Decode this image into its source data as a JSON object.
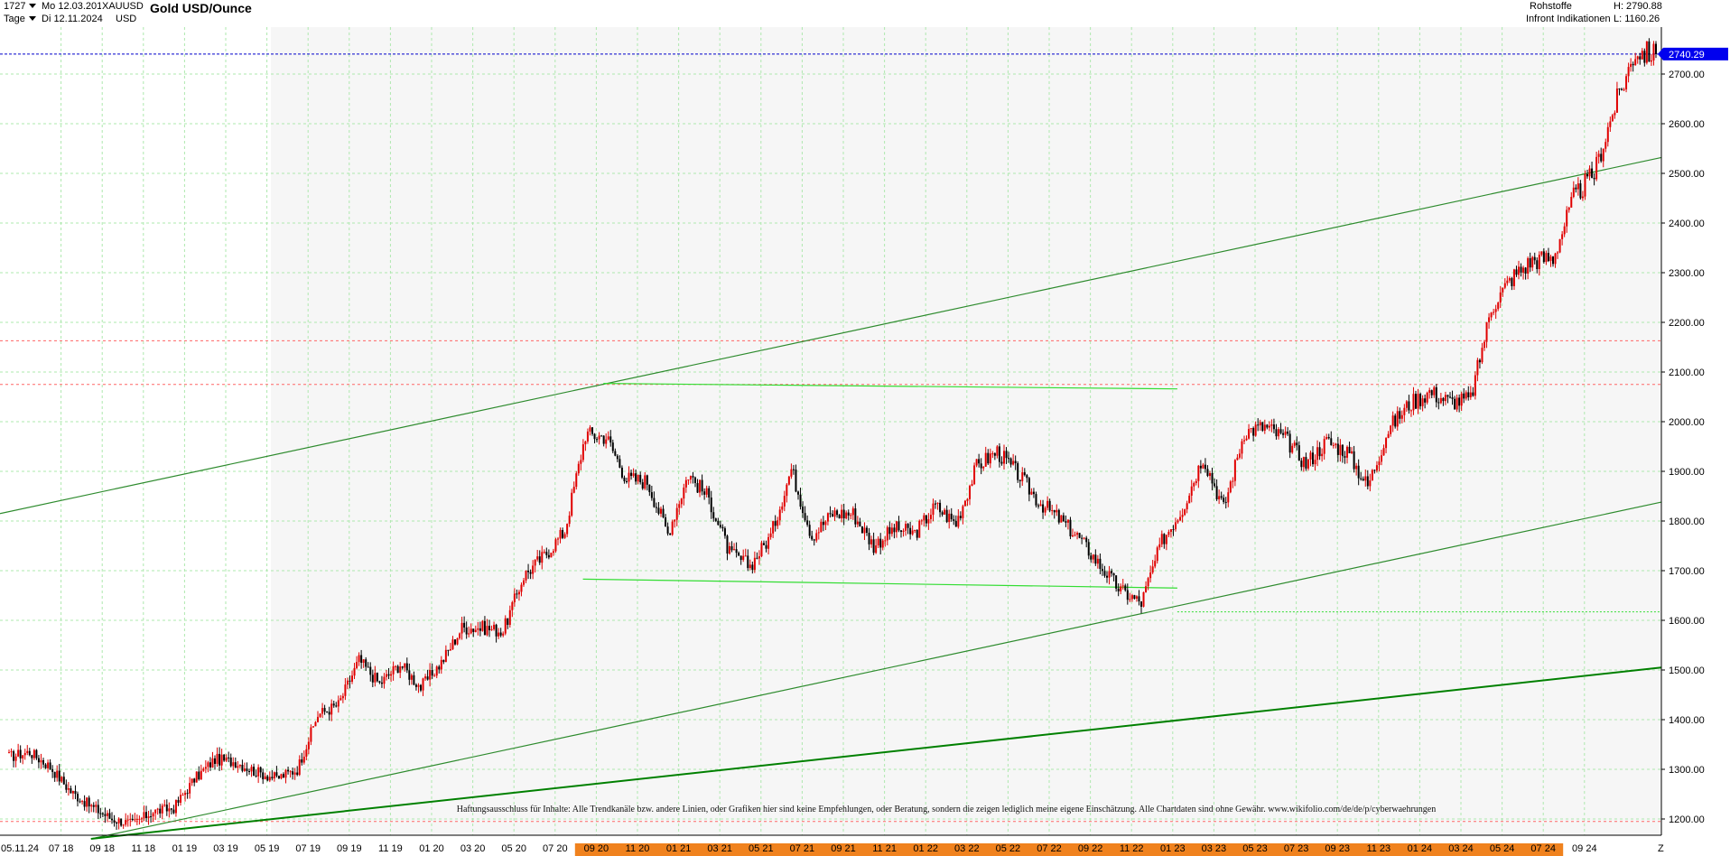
{
  "header": {
    "id": "1727",
    "period_label": "Tage",
    "start_date": "Mo 12.03.2018",
    "end_date": "Di 12.11.2024",
    "symbol": "XAUUSD",
    "currency": "USD",
    "title": "Gold USD/Ounce",
    "category": "Rohstoffe",
    "source": "Infront Indikationen",
    "high_label": "H: 2790.88",
    "low_label": "L: 1160.26",
    "axis_unit_marker": "Z"
  },
  "colors": {
    "candle_up": "#e00000",
    "candle_down": "#000000",
    "trend_green": "#2e8b2e",
    "channel_green": "#008000",
    "range_green": "#33dd33",
    "grid": "#aee8ae",
    "price_line": "#0000cc",
    "red_dashed": "#ff6666",
    "price_tag": "#0000ee",
    "orange_band": "#f0821e"
  },
  "chart_data": {
    "type": "candlestick",
    "title": "Gold USD/Ounce",
    "ylim": [
      1160,
      2800
    ],
    "y_ticks": [
      1200,
      1300,
      1400,
      1500,
      1600,
      1700,
      1800,
      1900,
      2000,
      2100,
      2200,
      2300,
      2400,
      2500,
      2600,
      2700
    ],
    "x_tick_labels": [
      "05.11.24",
      "07 18",
      "09 18",
      "11 18",
      "01 19",
      "03 19",
      "05 19",
      "07 19",
      "09 19",
      "11 19",
      "01 20",
      "03 20",
      "05 20",
      "07 20",
      "09 20",
      "11 20",
      "01 21",
      "03 21",
      "05 21",
      "07 21",
      "09 21",
      "11 21",
      "01 22",
      "03 22",
      "05 22",
      "07 22",
      "09 22",
      "11 22",
      "01 23",
      "03 23",
      "05 23",
      "07 23",
      "09 23",
      "11 23",
      "01 24",
      "03 24",
      "05 24",
      "07 24",
      "09 24"
    ],
    "last_price": 2740.29,
    "last_price_label": "2740.29",
    "high": 2790.88,
    "low": 1160.26,
    "series": [
      {
        "dates": [
          "2018-03",
          "2018-04",
          "2018-05",
          "2018-06",
          "2018-07",
          "2018-08",
          "2018-09",
          "2018-10",
          "2018-11",
          "2018-12",
          "2019-01",
          "2019-02",
          "2019-03",
          "2019-04",
          "2019-05",
          "2019-06",
          "2019-07",
          "2019-08",
          "2019-09",
          "2019-10",
          "2019-11",
          "2019-12",
          "2020-01",
          "2020-02",
          "2020-03",
          "2020-04",
          "2020-05",
          "2020-06",
          "2020-07",
          "2020-08",
          "2020-09",
          "2020-10",
          "2020-11",
          "2020-12",
          "2021-01",
          "2021-02",
          "2021-03",
          "2021-04",
          "2021-05",
          "2021-06",
          "2021-07",
          "2021-08",
          "2021-09",
          "2021-10",
          "2021-11",
          "2021-12",
          "2022-01",
          "2022-02",
          "2022-03",
          "2022-04",
          "2022-05",
          "2022-06",
          "2022-07",
          "2022-08",
          "2022-09",
          "2022-10",
          "2022-11",
          "2022-12",
          "2023-01",
          "2023-02",
          "2023-03",
          "2023-04",
          "2023-05",
          "2023-06",
          "2023-07",
          "2023-08",
          "2023-09",
          "2023-10",
          "2023-11",
          "2023-12",
          "2024-01",
          "2024-02",
          "2024-03",
          "2024-04",
          "2024-05",
          "2024-06",
          "2024-07",
          "2024-08",
          "2024-09",
          "2024-10",
          "2024-11"
        ],
        "close": [
          1325,
          1335,
          1305,
          1255,
          1225,
          1200,
          1190,
          1215,
          1222,
          1280,
          1320,
          1315,
          1295,
          1282,
          1300,
          1410,
          1430,
          1520,
          1472,
          1512,
          1465,
          1515,
          1585,
          1585,
          1578,
          1690,
          1730,
          1780,
          1975,
          1970,
          1885,
          1880,
          1775,
          1895,
          1845,
          1735,
          1710,
          1770,
          1905,
          1770,
          1815,
          1815,
          1750,
          1785,
          1775,
          1830,
          1795,
          1910,
          1940,
          1895,
          1840,
          1805,
          1765,
          1710,
          1660,
          1635,
          1760,
          1825,
          1930,
          1825,
          1980,
          1990,
          1965,
          1915,
          1960,
          1940,
          1870,
          1985,
          2035,
          2060,
          2040,
          2045,
          2230,
          2290,
          2325,
          2330,
          2450,
          2500,
          2635,
          2745,
          2740
        ]
      }
    ],
    "trend_lines": [
      {
        "from": [
          "2018-02",
          1815
        ],
        "to": [
          "2024-12",
          2532
        ]
      },
      {
        "from": [
          "2018-07",
          1160
        ],
        "to": [
          "2024-12",
          1838
        ]
      },
      {
        "from": [
          "2018-07",
          1160
        ],
        "to": [
          "2024-12",
          1505
        ]
      },
      {
        "from": [
          "2020-08",
          2077
        ],
        "to": [
          "2022-12",
          2066
        ]
      },
      {
        "from": [
          "2020-07",
          1683
        ],
        "to": [
          "2022-12",
          1665
        ]
      }
    ],
    "horizontal_lines": [
      {
        "value": 2163,
        "style": "dashed-red"
      },
      {
        "value": 2075,
        "style": "dashed-red"
      },
      {
        "value": 1195,
        "style": "dashed-red"
      },
      {
        "value": 2740.29,
        "style": "dashed-blue"
      },
      {
        "value": 1617,
        "style": "dashed-green",
        "from": "2022-12"
      }
    ]
  },
  "disclaimer": "Haftungsausschluss für Inhalte: Alle Trendkanäle bzw. andere Linien, oder Grafiken hier sind keine Empfehlungen, oder Beratung, sondern die zeigen lediglich meine eigene Einschätzung. Alle Chartdaten sind ohne Gewähr. www.wikifolio.com/de/de/p/cyberwaehrungen"
}
